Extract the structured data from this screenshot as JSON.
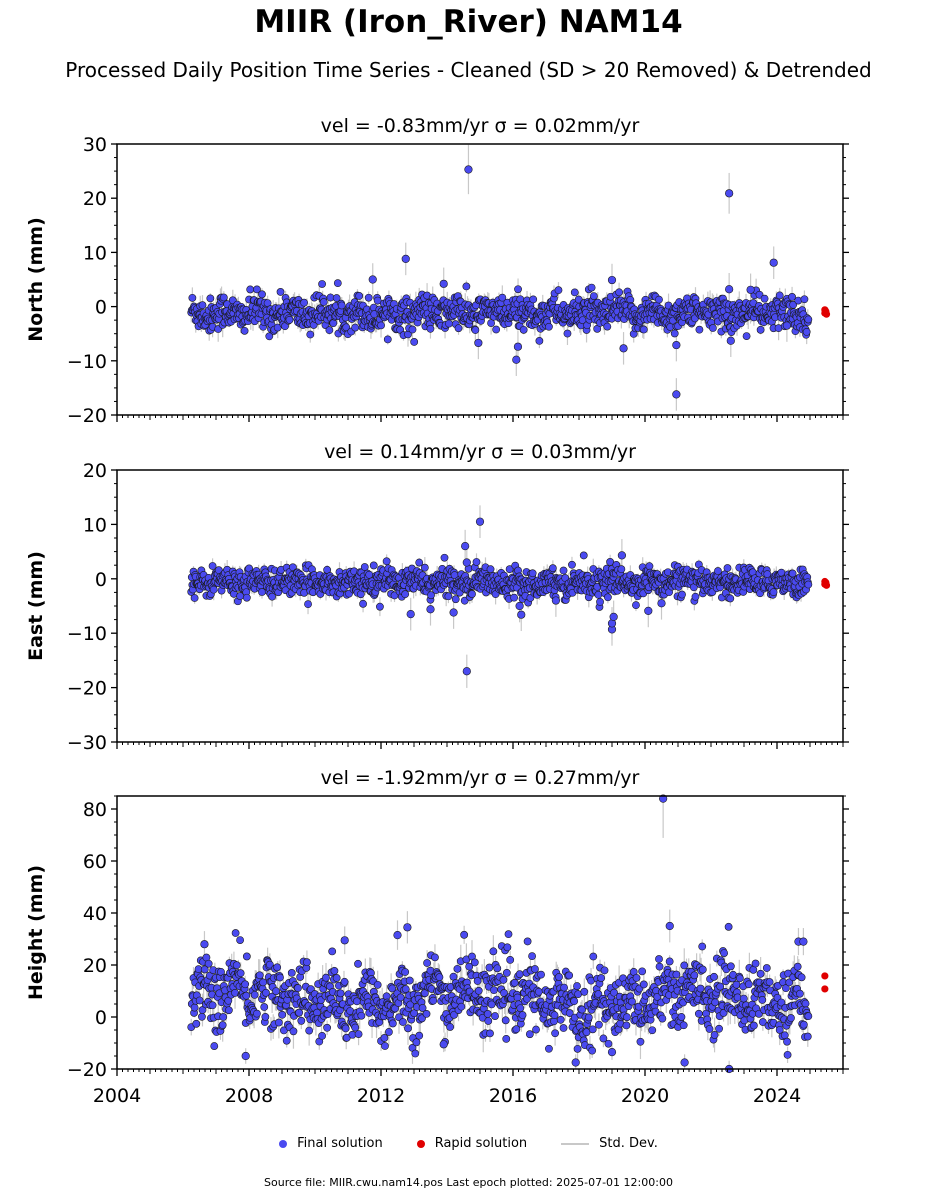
{
  "title": "MIIR (Iron_River) NAM14",
  "subtitle": "Processed Daily Position Time Series - Cleaned (SD > 20 Removed) & Detrended",
  "legend": {
    "final": "Final solution",
    "rapid": "Rapid solution",
    "std": "Std. Dev."
  },
  "footer": "Source file: MIIR.cwu.nam14.pos  Last epoch plotted: 2025-07-01 12:00:00",
  "colors": {
    "final": "#4a4af0",
    "rapid": "#e00000",
    "stddev": "#c8c8c8",
    "edge": "#1a1a1a"
  },
  "chart_data": [
    {
      "type": "scatter",
      "panel": "north",
      "title": "vel = -0.83mm/yr   σ = 0.02mm/yr",
      "ylabel": "North (mm)",
      "xlabel": "",
      "xlim": [
        2004,
        2026
      ],
      "ylim": [
        -20,
        30
      ],
      "yticks": [
        -20,
        -10,
        0,
        10,
        20,
        30
      ],
      "xticks": [
        2004,
        2008,
        2012,
        2016,
        2020,
        2024
      ],
      "data_start": 2006.25,
      "data_end": 2024.95,
      "typical_spread": 1.6,
      "band_sd": 1.6,
      "outliers": [
        [
          2012.75,
          8.8
        ],
        [
          2011.75,
          5.0
        ],
        [
          2014.65,
          25.3
        ],
        [
          2013.9,
          4.2
        ],
        [
          2014.95,
          -6.7
        ],
        [
          2016.15,
          -7.4
        ],
        [
          2016.1,
          -9.8
        ],
        [
          2019.0,
          4.9
        ],
        [
          2019.35,
          -7.7
        ],
        [
          2020.95,
          -7.1
        ],
        [
          2020.95,
          -16.2
        ],
        [
          2022.55,
          20.9
        ],
        [
          2022.6,
          -6.3
        ],
        [
          2022.55,
          3.2
        ],
        [
          2023.2,
          3.1
        ],
        [
          2023.9,
          8.1
        ],
        [
          2024.3,
          -3.5
        ]
      ],
      "rapid": [
        [
          2025.45,
          -0.6
        ],
        [
          2025.45,
          -1.2
        ],
        [
          2025.5,
          -1.4
        ],
        [
          2025.48,
          -0.9
        ]
      ]
    },
    {
      "type": "scatter",
      "panel": "east",
      "title": "vel = 0.14mm/yr   σ = 0.03mm/yr",
      "ylabel": "East (mm)",
      "xlabel": "",
      "xlim": [
        2004,
        2026
      ],
      "ylim": [
        -30,
        20
      ],
      "yticks": [
        -30,
        -20,
        -10,
        0,
        10,
        20
      ],
      "xticks": [
        2004,
        2008,
        2012,
        2016,
        2020,
        2024
      ],
      "data_start": 2006.25,
      "data_end": 2024.95,
      "typical_spread": 1.3,
      "band_sd": 1.3,
      "outliers": [
        [
          2012.9,
          -6.5
        ],
        [
          2013.5,
          -5.6
        ],
        [
          2014.2,
          -6.2
        ],
        [
          2014.6,
          -17.0
        ],
        [
          2014.55,
          6.0
        ],
        [
          2015.0,
          10.5
        ],
        [
          2014.6,
          3.0
        ],
        [
          2016.25,
          -6.6
        ],
        [
          2016.2,
          -5.0
        ],
        [
          2017.3,
          -4.0
        ],
        [
          2019.0,
          -9.3
        ],
        [
          2019.0,
          -8.2
        ],
        [
          2019.05,
          -7.0
        ],
        [
          2019.3,
          4.3
        ],
        [
          2020.1,
          -5.9
        ],
        [
          2020.5,
          -4.5
        ]
      ],
      "rapid": [
        [
          2025.45,
          -0.5
        ],
        [
          2025.45,
          -1.0
        ],
        [
          2025.5,
          -1.2
        ],
        [
          2025.48,
          -0.7
        ]
      ]
    },
    {
      "type": "scatter",
      "panel": "height",
      "title": "vel = -1.92mm/yr   σ = 0.27mm/yr",
      "ylabel": "Height (mm)",
      "xlabel": "",
      "xlim": [
        2004,
        2026
      ],
      "ylim": [
        -20,
        85
      ],
      "yticks": [
        -20,
        0,
        20,
        40,
        60,
        80
      ],
      "xticks": [
        2004,
        2008,
        2012,
        2016,
        2020,
        2024
      ],
      "data_start": 2006.25,
      "data_end": 2024.95,
      "typical_spread": 6.5,
      "band_sd": 4.5,
      "outliers": [
        [
          2006.65,
          28.0
        ],
        [
          2010.9,
          29.5
        ],
        [
          2012.5,
          31.5
        ],
        [
          2012.8,
          34.5
        ],
        [
          2020.55,
          84.0
        ],
        [
          2020.75,
          35.0
        ],
        [
          2017.9,
          -17.5
        ],
        [
          2021.2,
          -17.5
        ],
        [
          2022.55,
          -20.5
        ],
        [
          2013.9,
          -10.5
        ],
        [
          2007.9,
          -15.0
        ],
        [
          2019.0,
          -13.5
        ],
        [
          2024.65,
          29.0
        ],
        [
          2024.8,
          29.0
        ]
      ],
      "rapid": [
        [
          2025.45,
          15.8
        ],
        [
          2025.45,
          10.8
        ]
      ]
    }
  ]
}
